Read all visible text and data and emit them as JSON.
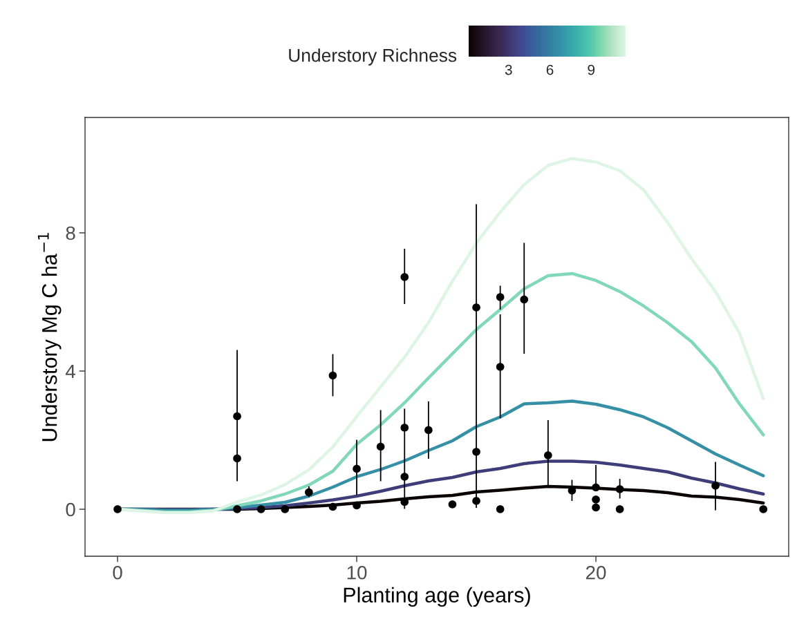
{
  "chart_data": {
    "type": "line",
    "xlabel": "Planting age (years)",
    "ylabel": "Understory Mg C ha$^{−1}$",
    "clabel": "Understory Richness",
    "clim": [
      0.1,
      11.5
    ],
    "cticks": [
      3,
      6,
      9
    ],
    "xlim": [
      -1.36,
      28.06
    ],
    "ylim": [
      -1.36,
      11.34
    ],
    "xticks": [
      0,
      10,
      20
    ],
    "yticks": [
      0,
      4,
      8
    ],
    "grid": false,
    "legend": false,
    "series": [
      {
        "color": "#0b0405",
        "x": [
          0,
          1,
          2,
          3,
          4,
          5,
          6,
          7,
          8,
          9,
          10,
          11,
          12,
          13,
          14,
          15,
          16,
          17,
          18,
          19,
          20,
          21,
          22,
          23,
          24,
          25,
          26,
          27
        ],
        "values": [
          0,
          0,
          0,
          0,
          0,
          0,
          0.02,
          0.05,
          0.08,
          0.12,
          0.18,
          0.23,
          0.3,
          0.36,
          0.4,
          0.5,
          0.55,
          0.61,
          0.66,
          0.64,
          0.61,
          0.57,
          0.54,
          0.48,
          0.38,
          0.35,
          0.28,
          0.18
        ]
      },
      {
        "color": "#3e3d7a",
        "x": [
          0,
          1,
          2,
          3,
          4,
          5,
          6,
          7,
          8,
          9,
          10,
          11,
          12,
          13,
          14,
          15,
          16,
          17,
          18,
          19,
          20,
          21,
          22,
          23,
          24,
          25,
          26,
          27
        ],
        "values": [
          0,
          0,
          -0.01,
          -0.01,
          0,
          0.02,
          0.05,
          0.1,
          0.18,
          0.27,
          0.38,
          0.52,
          0.68,
          0.82,
          0.92,
          1.08,
          1.18,
          1.32,
          1.39,
          1.39,
          1.36,
          1.28,
          1.18,
          1.08,
          0.9,
          0.76,
          0.59,
          0.44
        ]
      },
      {
        "color": "#3590a6",
        "x": [
          0,
          1,
          2,
          3,
          4,
          5,
          6,
          7,
          8,
          9,
          10,
          11,
          12,
          13,
          14,
          15,
          16,
          17,
          18,
          19,
          20,
          21,
          22,
          23,
          24,
          25,
          26,
          27
        ],
        "values": [
          0,
          -0.01,
          -0.03,
          -0.03,
          -0.01,
          0.05,
          0.12,
          0.2,
          0.38,
          0.64,
          0.94,
          1.15,
          1.4,
          1.7,
          1.98,
          2.39,
          2.67,
          3.05,
          3.08,
          3.13,
          3.04,
          2.88,
          2.67,
          2.36,
          1.98,
          1.6,
          1.28,
          0.97
        ]
      },
      {
        "color": "#81d7b9",
        "x": [
          0,
          1,
          2,
          3,
          4,
          5,
          6,
          7,
          8,
          9,
          10,
          11,
          12,
          13,
          14,
          15,
          16,
          17,
          18,
          19,
          20,
          21,
          22,
          23,
          24,
          25,
          26,
          27
        ],
        "values": [
          0,
          -0.04,
          -0.08,
          -0.08,
          -0.03,
          0.1,
          0.24,
          0.44,
          0.7,
          1.1,
          1.88,
          2.44,
          3.08,
          3.8,
          4.5,
          5.2,
          5.78,
          6.38,
          6.76,
          6.82,
          6.62,
          6.3,
          5.88,
          5.4,
          4.85,
          4.09,
          3.05,
          2.15
        ]
      },
      {
        "color": "#def5e5",
        "x": [
          0,
          1,
          2,
          3,
          4,
          5,
          6,
          7,
          8,
          9,
          10,
          11,
          12,
          13,
          14,
          15,
          16,
          17,
          18,
          19,
          20,
          21,
          22,
          23,
          24,
          25,
          26,
          27
        ],
        "values": [
          0,
          -0.05,
          -0.1,
          -0.1,
          -0.05,
          0.21,
          0.41,
          0.71,
          1.14,
          1.8,
          2.68,
          3.54,
          4.4,
          5.4,
          6.6,
          7.7,
          8.6,
          9.4,
          9.95,
          10.15,
          10.05,
          9.8,
          9.24,
          8.3,
          7.25,
          6.3,
          5.1,
          3.2
        ]
      },
      {
        "type": "scatter",
        "color": "#000000",
        "marker": "circle",
        "x": [
          0,
          5,
          5,
          5,
          6,
          7,
          8,
          9,
          9,
          10,
          10,
          11,
          12,
          12,
          12,
          12,
          13,
          14,
          15,
          15,
          15,
          16,
          16,
          16,
          17,
          18,
          19,
          20,
          20,
          20,
          21,
          21,
          25,
          27
        ],
        "values": [
          0,
          2.69,
          1.47,
          0,
          0,
          0,
          0.49,
          3.87,
          0.07,
          1.17,
          0.11,
          1.81,
          6.72,
          2.36,
          0.94,
          0.21,
          2.29,
          0.14,
          5.84,
          1.66,
          0.24,
          6.14,
          4.12,
          0,
          6.07,
          1.56,
          0.54,
          0.63,
          0.28,
          0.05,
          0.58,
          0,
          0.68,
          0
        ],
        "errors": [
          null,
          [
            0.81,
            4.61
          ],
          null,
          null,
          null,
          null,
          [
            0.35,
            0.66
          ],
          [
            3.27,
            4.49
          ],
          null,
          [
            0.41,
            2.01
          ],
          null,
          [
            0.81,
            2.87
          ],
          [
            5.94,
            7.54
          ],
          null,
          [
            0.01,
            2.91
          ],
          null,
          [
            1.46,
            3.12
          ],
          null,
          [
            0.04,
            8.83
          ],
          null,
          null,
          [
            5.78,
            6.47
          ],
          [
            2.63,
            5.64
          ],
          null,
          [
            4.5,
            7.71
          ],
          [
            0.69,
            2.58
          ],
          [
            0.24,
            0.85
          ],
          [
            0.63,
            1.28
          ],
          null,
          null,
          [
            0.31,
            0.88
          ],
          null,
          [
            -0.03,
            1.37
          ],
          null
        ]
      }
    ]
  }
}
